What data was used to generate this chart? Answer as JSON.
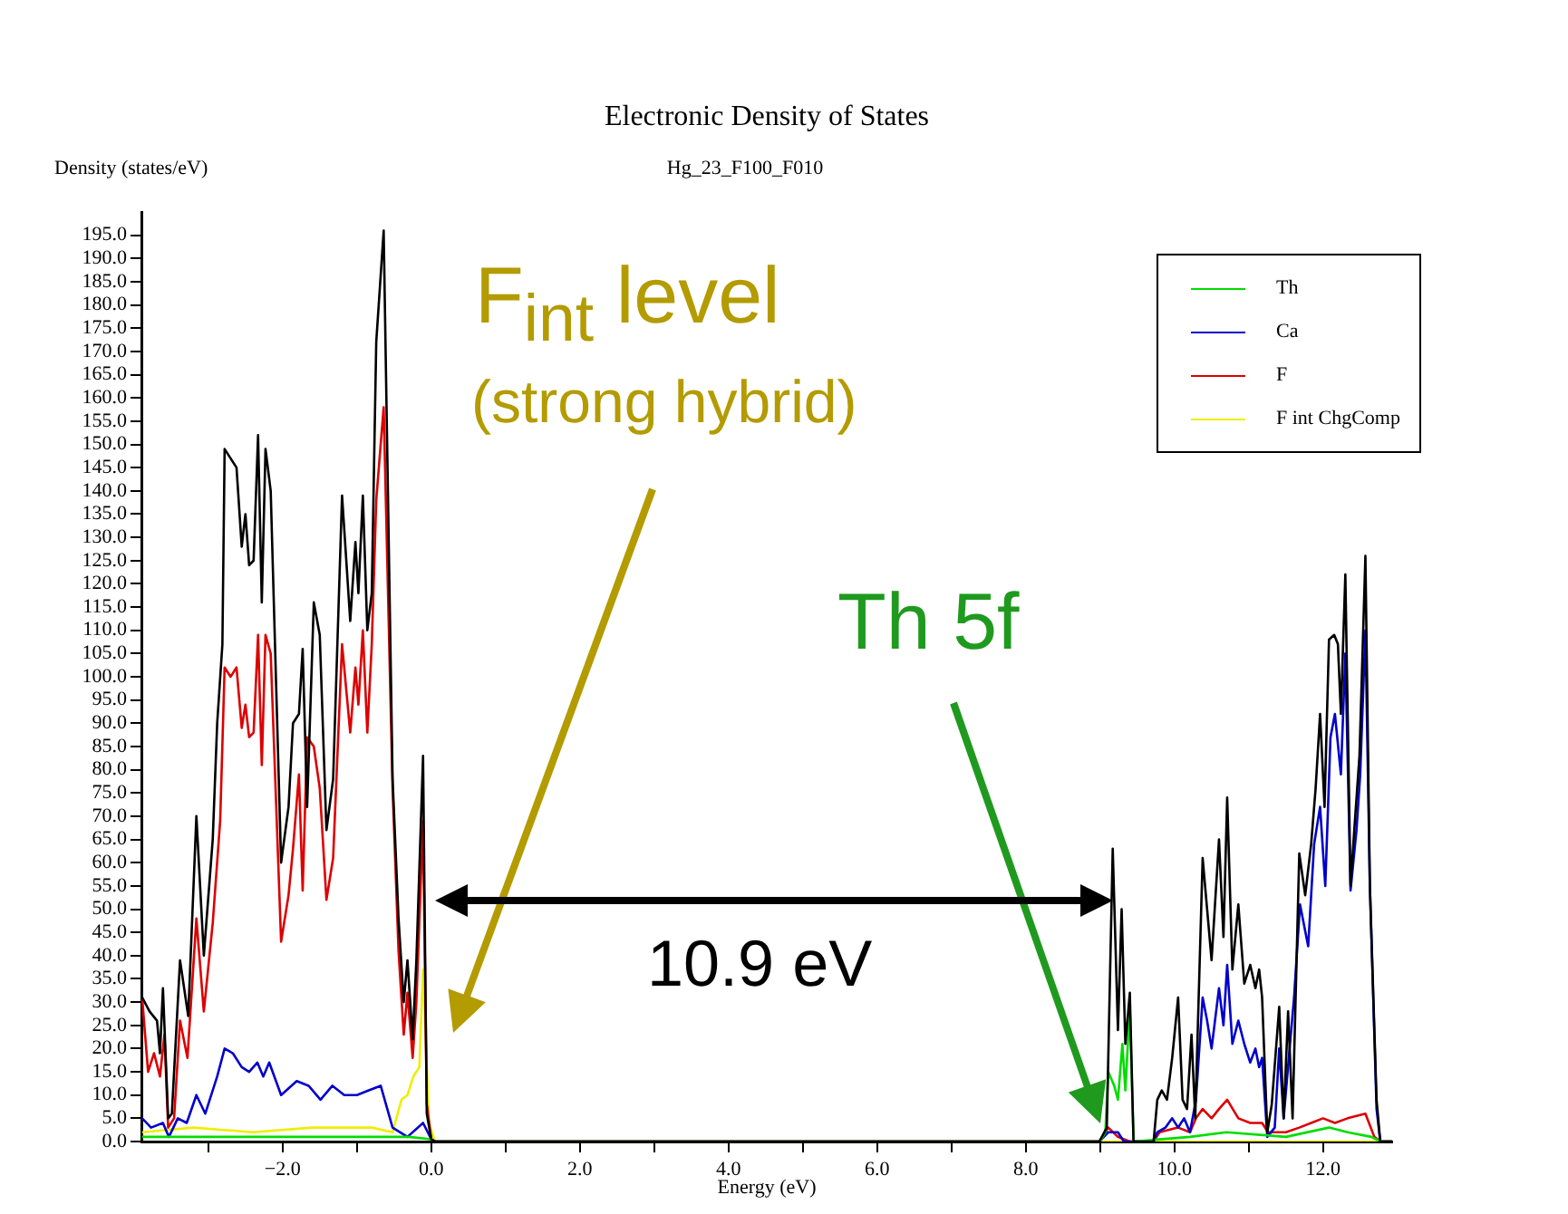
{
  "chart_data": {
    "type": "line",
    "title": "Electronic Density of States",
    "subtitle": "Hg_23_F100_F010",
    "xlabel": "Energy (eV)",
    "ylabel": "Density (states/eV)",
    "xlim": [
      -3.9,
      12.93
    ],
    "ylim": [
      0,
      200
    ],
    "xticks": [
      {
        "value": -3,
        "label": null
      },
      {
        "value": -2,
        "label": "−2.0"
      },
      {
        "value": -1,
        "label": null
      },
      {
        "value": 0,
        "label": "0.0"
      },
      {
        "value": 1,
        "label": null
      },
      {
        "value": 2,
        "label": "2.0"
      },
      {
        "value": 3,
        "label": null
      },
      {
        "value": 4,
        "label": "4.0"
      },
      {
        "value": 5,
        "label": null
      },
      {
        "value": 6,
        "label": "6.0"
      },
      {
        "value": 7,
        "label": null
      },
      {
        "value": 8,
        "label": "8.0"
      },
      {
        "value": 9,
        "label": null
      },
      {
        "value": 10,
        "label": "10.0"
      },
      {
        "value": 11,
        "label": null
      },
      {
        "value": 12,
        "label": "12.0"
      }
    ],
    "yticks": [
      {
        "value": 0,
        "label": "0.0"
      },
      {
        "value": 5,
        "label": "5.0"
      },
      {
        "value": 10,
        "label": "10.0"
      },
      {
        "value": 15,
        "label": "15.0"
      },
      {
        "value": 20,
        "label": "20.0"
      },
      {
        "value": 25,
        "label": "25.0"
      },
      {
        "value": 30,
        "label": "30.0"
      },
      {
        "value": 35,
        "label": "35.0"
      },
      {
        "value": 40,
        "label": "40.0"
      },
      {
        "value": 45,
        "label": "45.0"
      },
      {
        "value": 50,
        "label": "50.0"
      },
      {
        "value": 55,
        "label": "55.0"
      },
      {
        "value": 60,
        "label": "60.0"
      },
      {
        "value": 65,
        "label": "65.0"
      },
      {
        "value": 70,
        "label": "70.0"
      },
      {
        "value": 75,
        "label": "75.0"
      },
      {
        "value": 80,
        "label": "80.0"
      },
      {
        "value": 85,
        "label": "85.0"
      },
      {
        "value": 90,
        "label": "90.0"
      },
      {
        "value": 95,
        "label": "95.0"
      },
      {
        "value": 100,
        "label": "100.0"
      },
      {
        "value": 105,
        "label": "105.0"
      },
      {
        "value": 110,
        "label": "110.0"
      },
      {
        "value": 115,
        "label": "115.0"
      },
      {
        "value": 120,
        "label": "120.0"
      },
      {
        "value": 125,
        "label": "125.0"
      },
      {
        "value": 130,
        "label": "130.0"
      },
      {
        "value": 135,
        "label": "135.0"
      },
      {
        "value": 140,
        "label": "140.0"
      },
      {
        "value": 145,
        "label": "145.0"
      },
      {
        "value": 150,
        "label": "150.0"
      },
      {
        "value": 155,
        "label": "155.0"
      },
      {
        "value": 160,
        "label": "160.0"
      },
      {
        "value": 165,
        "label": "165.0"
      },
      {
        "value": 170,
        "label": "170.0"
      },
      {
        "value": 175,
        "label": "175.0"
      },
      {
        "value": 180,
        "label": "180.0"
      },
      {
        "value": 185,
        "label": "185.0"
      },
      {
        "value": 190,
        "label": "190.0"
      },
      {
        "value": 195,
        "label": "195.0"
      }
    ],
    "grid": false,
    "legend": "top right",
    "marker": "none",
    "line_style": "solid",
    "annotations": [
      "F$_{int}$ level",
      "(strong hybrid)",
      "Th 5f",
      "10.9 eV"
    ],
    "series": [
      {
        "color": "#000000",
        "x": [
          -3.89,
          -3.79,
          -3.69,
          -3.65,
          -3.61,
          -3.54,
          -3.49,
          -3.38,
          -3.27,
          -3.16,
          -3.06,
          -2.94,
          -2.88,
          -2.81,
          -2.78,
          -2.7,
          -2.62,
          -2.55,
          -2.5,
          -2.45,
          -2.39,
          -2.33,
          -2.28,
          -2.23,
          -2.16,
          -2.02,
          -1.92,
          -1.86,
          -1.78,
          -1.73,
          -1.67,
          -1.58,
          -1.5,
          -1.41,
          -1.32,
          -1.2,
          -1.09,
          -1.02,
          -0.98,
          -0.92,
          -0.86,
          -0.8,
          -0.74,
          -0.64,
          -0.52,
          -0.44,
          -0.37,
          -0.32,
          -0.25,
          -0.2,
          -0.11,
          -0.06,
          0,
          0.05,
          8.95,
          8.99,
          9.09,
          9.17,
          9.24,
          9.29,
          9.34,
          9.4,
          9.45,
          9.72,
          9.77,
          9.83,
          9.9,
          9.97,
          10.05,
          10.11,
          10.17,
          10.23,
          10.28,
          10.38,
          10.44,
          10.5,
          10.6,
          10.66,
          10.71,
          10.78,
          10.86,
          10.94,
          11.02,
          11.09,
          11.14,
          11.18,
          11.25,
          11.31,
          11.41,
          11.47,
          11.53,
          11.59,
          11.68,
          11.76,
          11.84,
          11.9,
          11.96,
          12.02,
          12.08,
          12.15,
          12.2,
          12.24,
          12.3,
          12.37,
          12.42,
          12.49,
          12.57,
          12.63,
          12.72,
          12.77,
          12.93
        ],
        "values": [
          31,
          28,
          26,
          19,
          33,
          5,
          6,
          39,
          27,
          70,
          40,
          65,
          90,
          107,
          149,
          147,
          145,
          128,
          135,
          124,
          125,
          152,
          116,
          149,
          140,
          60,
          72,
          90,
          92,
          106,
          72,
          116,
          109,
          67,
          78,
          139,
          112,
          129,
          118,
          139,
          110,
          118,
          172,
          196,
          78,
          48,
          30,
          39,
          22,
          39,
          83,
          6,
          0.5,
          0,
          0,
          0,
          3,
          63,
          24,
          50,
          21,
          32,
          0,
          0,
          9,
          11,
          9,
          18,
          31,
          9,
          7,
          23,
          5,
          61,
          50,
          39,
          65,
          44,
          74,
          37,
          51,
          34,
          38,
          33,
          37,
          31,
          2,
          8,
          29,
          5,
          28,
          5,
          62,
          53,
          64,
          76,
          92,
          72,
          108,
          109,
          107,
          92,
          122,
          55,
          67,
          83,
          126,
          55,
          9,
          0,
          0
        ]
      },
      {
        "name": "Th",
        "color": "#00dd00",
        "x": [
          -3.89,
          -3,
          -2,
          -1,
          -0.3,
          0,
          0.05,
          8.95,
          9.0,
          9.07,
          9.11,
          9.19,
          9.24,
          9.3,
          9.34,
          9.4,
          9.45,
          10.21,
          10.7,
          11.5,
          12.08,
          12.33,
          12.65,
          12.77,
          12.93
        ],
        "values": [
          1,
          1,
          1,
          1,
          1,
          0.5,
          0,
          0,
          0,
          2,
          15,
          12,
          9,
          21,
          11,
          29,
          0,
          1,
          2,
          1,
          3,
          2,
          1,
          0,
          0
        ]
      },
      {
        "name": "Ca",
        "color": "#0000cc",
        "x": [
          -3.89,
          -3.77,
          -3.61,
          -3.53,
          -3.41,
          -3.29,
          -3.16,
          -3.04,
          -2.88,
          -2.78,
          -2.67,
          -2.55,
          -2.45,
          -2.34,
          -2.26,
          -2.18,
          -2.02,
          -1.81,
          -1.65,
          -1.49,
          -1.33,
          -1.17,
          -1.0,
          -0.84,
          -0.68,
          -0.52,
          -0.32,
          -0.11,
          0,
          0.05,
          8.95,
          8.99,
          9.11,
          9.24,
          9.32,
          9.72,
          9.77,
          9.88,
          9.97,
          10.05,
          10.13,
          10.21,
          10.29,
          10.38,
          10.44,
          10.5,
          10.6,
          10.66,
          10.71,
          10.78,
          10.86,
          10.94,
          11.02,
          11.09,
          11.14,
          11.18,
          11.25,
          11.35,
          11.41,
          11.47,
          11.55,
          11.61,
          11.69,
          11.8,
          11.88,
          11.96,
          12.03,
          12.1,
          12.16,
          12.24,
          12.3,
          12.37,
          12.45,
          12.5,
          12.57,
          12.63,
          12.72,
          12.77,
          12.93
        ],
        "values": [
          5,
          3,
          4,
          1,
          5,
          4,
          10,
          6,
          14,
          20,
          19,
          16,
          15,
          17,
          14,
          17,
          10,
          13,
          12,
          9,
          12,
          10,
          10,
          11,
          12,
          3,
          1,
          4,
          0.5,
          0,
          0,
          0,
          2,
          2,
          0,
          0,
          2,
          3,
          5,
          3,
          5,
          2,
          9,
          31,
          26,
          20,
          33,
          25,
          38,
          21,
          26,
          21,
          17,
          20,
          16,
          18,
          1,
          3,
          20,
          5,
          20,
          31,
          51,
          42,
          64,
          72,
          55,
          87,
          92,
          79,
          105,
          54,
          67,
          79,
          110,
          55,
          7,
          0,
          0
        ]
      },
      {
        "name": "F",
        "color": "#dd0000",
        "x": [
          -3.89,
          -3.81,
          -3.73,
          -3.65,
          -3.59,
          -3.54,
          -3.46,
          -3.38,
          -3.28,
          -3.16,
          -3.06,
          -2.94,
          -2.84,
          -2.78,
          -2.7,
          -2.62,
          -2.55,
          -2.5,
          -2.45,
          -2.39,
          -2.33,
          -2.28,
          -2.23,
          -2.16,
          -2.02,
          -1.92,
          -1.86,
          -1.78,
          -1.73,
          -1.67,
          -1.58,
          -1.5,
          -1.41,
          -1.32,
          -1.2,
          -1.09,
          -1.02,
          -0.98,
          -0.92,
          -0.86,
          -0.8,
          -0.74,
          -0.64,
          -0.52,
          -0.44,
          -0.37,
          -0.32,
          -0.25,
          -0.2,
          -0.11,
          -0.06,
          0,
          0.05,
          8.95,
          8.99,
          9.11,
          9.24,
          9.4,
          9.72,
          9.8,
          10.05,
          10.21,
          10.29,
          10.38,
          10.5,
          10.6,
          10.71,
          10.86,
          11.02,
          11.18,
          11.26,
          11.5,
          11.68,
          11.84,
          12.0,
          12.16,
          12.33,
          12.57,
          12.69,
          12.77,
          12.93
        ],
        "values": [
          31,
          15,
          19,
          14,
          23,
          3,
          5,
          26,
          18,
          48,
          28,
          47,
          69,
          102,
          100,
          102,
          89,
          94,
          87,
          88,
          109,
          81,
          109,
          105,
          43,
          53,
          63,
          79,
          54,
          87,
          85,
          76,
          52,
          61,
          107,
          88,
          102,
          94,
          110,
          88,
          107,
          138,
          158,
          76,
          41,
          23,
          32,
          18,
          30,
          69,
          8,
          0.5,
          0,
          0,
          0,
          3,
          1,
          0,
          0,
          2,
          3,
          2,
          5,
          7,
          5,
          7,
          9,
          5,
          4,
          4,
          2,
          2,
          3,
          4,
          5,
          4,
          5,
          6,
          1,
          0,
          0
        ]
      },
      {
        "name": "F int ChgComp",
        "color": "#eeee00",
        "x": [
          -3.89,
          -3.2,
          -2.4,
          -1.6,
          -0.8,
          -0.52,
          -0.4,
          -0.32,
          -0.24,
          -0.16,
          -0.11,
          -0.03,
          0.05,
          12.93
        ],
        "values": [
          2,
          3,
          2,
          3,
          3,
          2,
          9,
          10,
          14,
          16,
          37,
          4,
          0,
          0
        ]
      }
    ]
  }
}
